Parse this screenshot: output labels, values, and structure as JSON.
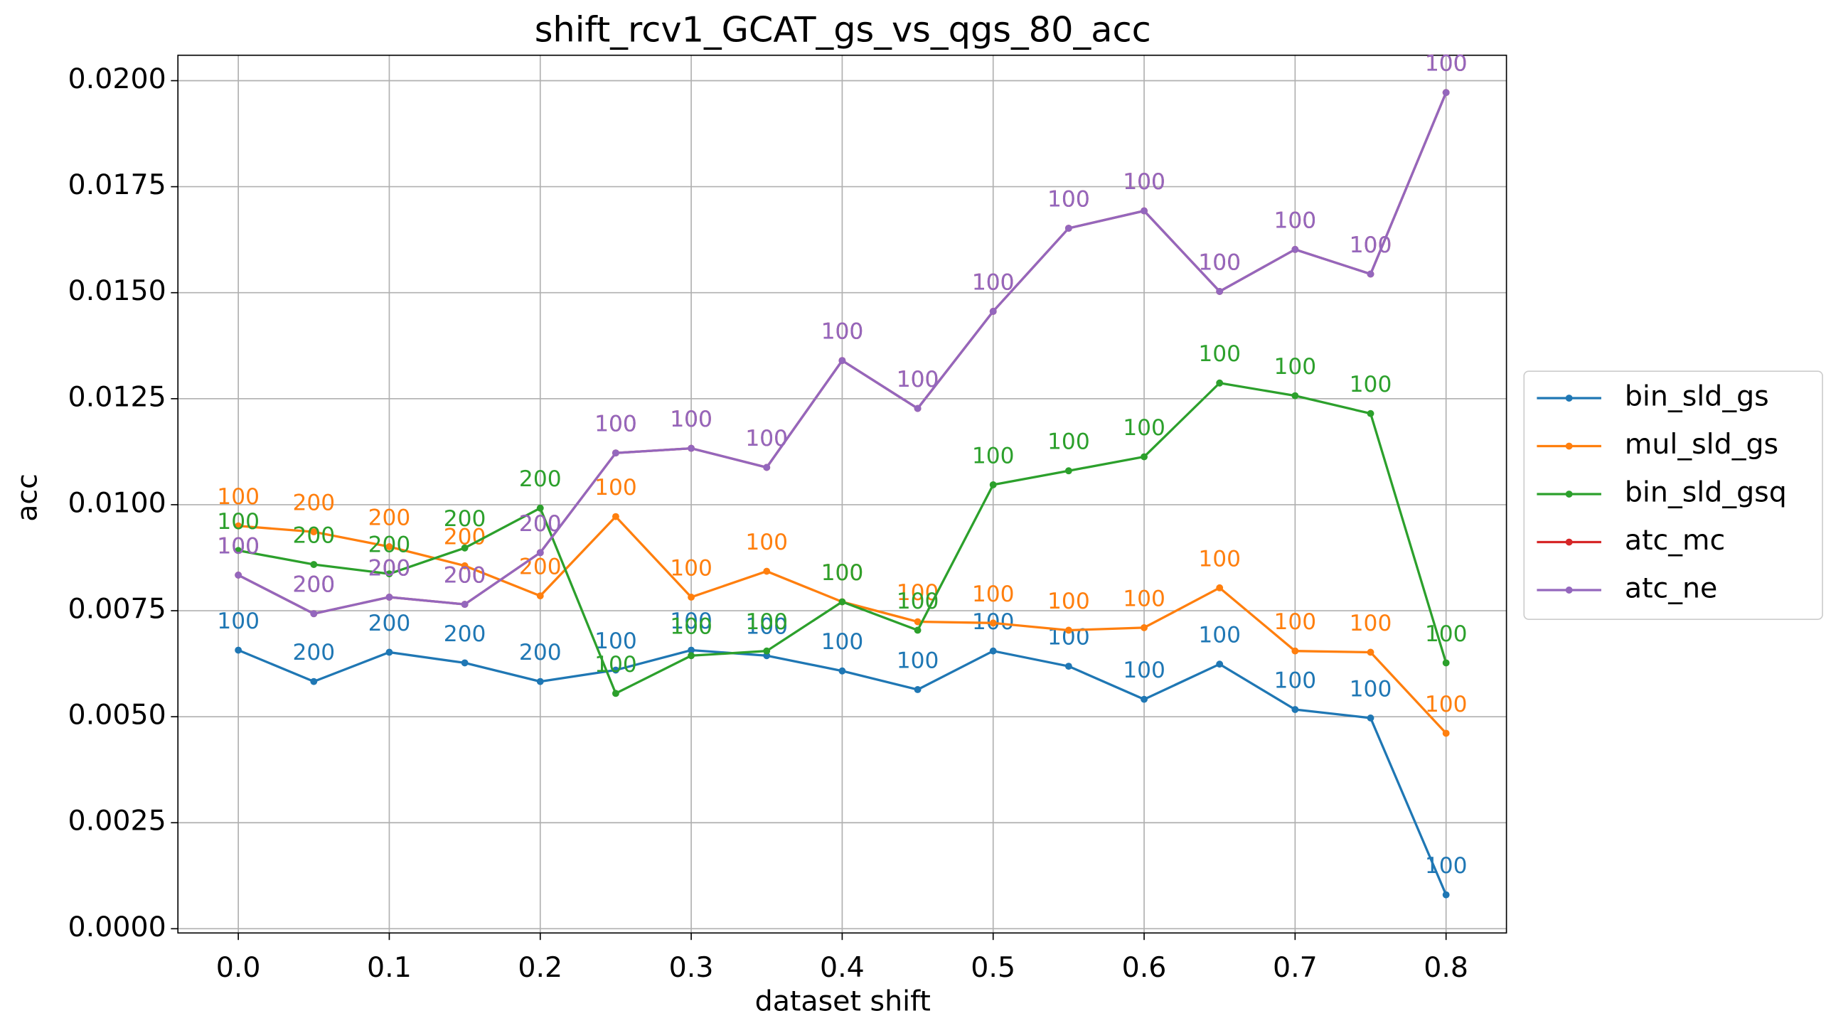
{
  "chart_data": {
    "type": "line",
    "title": "shift_rcv1_GCAT_gs_vs_qgs_80_acc",
    "xlabel": "dataset shift",
    "ylabel": "acc",
    "x": [
      0,
      0.05,
      0.1,
      0.15,
      0.2,
      0.25,
      0.3,
      0.35,
      0.4,
      0.45,
      0.5,
      0.55,
      0.6,
      0.65,
      0.7,
      0.75,
      0.8
    ],
    "xlim": [
      -0.04,
      0.84
    ],
    "ylim": [
      -0.0001,
      0.0206
    ],
    "xticks": [
      {
        "value": 0,
        "label": "0.0"
      },
      0.1,
      0.2,
      0.3,
      0.4,
      0.5,
      0.6,
      0.7,
      0.8
    ],
    "yticks": [
      {
        "value": 0,
        "label": "0.0000"
      },
      {
        "value": 0.0025,
        "label": "0.0025"
      },
      {
        "value": 0.005,
        "label": "0.0050"
      },
      {
        "value": 0.0075,
        "label": "0.0075"
      },
      {
        "value": 0.01,
        "label": "0.0100"
      },
      {
        "value": 0.0125,
        "label": "0.0125"
      },
      {
        "value": 0.015,
        "label": "0.0150"
      },
      {
        "value": 0.0175,
        "label": "0.0175"
      },
      {
        "value": 0.02,
        "label": "0.0200"
      }
    ],
    "grid": true,
    "legend": "right",
    "series": [
      {
        "name": "bin_sld_gs",
        "color": "#1f77b4",
        "values": [
          0.00657,
          0.00583,
          0.00652,
          0.00627,
          0.00583,
          0.0061,
          0.00657,
          0.00644,
          0.00608,
          0.00564,
          0.00655,
          0.00619,
          0.00541,
          0.00624,
          0.00517,
          0.00497,
          0.0008
        ],
        "value_labels": [
          "100",
          "200",
          "200",
          "200",
          "200",
          "100",
          "100",
          "100",
          "100",
          "100",
          "100",
          "100",
          "100",
          "100",
          "100",
          "100",
          "100"
        ]
      },
      {
        "name": "mul_sld_gs",
        "color": "#ff7f0e",
        "values": [
          0.0095,
          0.00936,
          0.00901,
          0.00856,
          0.00785,
          0.00972,
          0.00782,
          0.00843,
          0.00771,
          0.00724,
          0.00721,
          0.00704,
          0.0071,
          0.00804,
          0.00655,
          0.00652,
          0.00461
        ],
        "value_labels": [
          "100",
          "200",
          "200",
          "200",
          "200",
          "100",
          "100",
          "100",
          "100",
          "100",
          "100",
          "100",
          "100",
          "100",
          "100",
          "100",
          "100"
        ]
      },
      {
        "name": "bin_sld_gsq",
        "color": "#2ca02c",
        "values": [
          0.00892,
          0.00859,
          0.00837,
          0.00898,
          0.00992,
          0.00555,
          0.00644,
          0.00655,
          0.00771,
          0.00704,
          0.01047,
          0.0108,
          0.01113,
          0.01287,
          0.01257,
          0.01215,
          0.00627
        ],
        "value_labels": [
          "100",
          "200",
          "200",
          "200",
          "200",
          "100",
          "100",
          "100",
          "100",
          "100",
          "100",
          "100",
          "100",
          "100",
          "100",
          "100",
          "100"
        ]
      },
      {
        "name": "atc_mc",
        "color": "#d62728",
        "values": [
          0.00834,
          0.00743,
          0.00782,
          0.00765,
          0.00887,
          0.01122,
          0.01133,
          0.01088,
          0.0134,
          0.01227,
          0.01456,
          0.01652,
          0.01693,
          0.01503,
          0.01602,
          0.01544,
          0.01972
        ],
        "value_labels": [
          "100",
          "200",
          "200",
          "200",
          "200",
          "100",
          "100",
          "100",
          "100",
          "100",
          "100",
          "100",
          "100",
          "100",
          "100",
          "100",
          "100"
        ]
      },
      {
        "name": "atc_ne",
        "color": "#9467bd",
        "values": [
          0.00834,
          0.00743,
          0.00782,
          0.00765,
          0.00887,
          0.01122,
          0.01133,
          0.01088,
          0.0134,
          0.01227,
          0.01456,
          0.01652,
          0.01693,
          0.01503,
          0.01602,
          0.01544,
          0.01972
        ],
        "value_labels": [
          "100",
          "200",
          "200",
          "200",
          "200",
          "100",
          "100",
          "100",
          "100",
          "100",
          "100",
          "100",
          "100",
          "100",
          "100",
          "100",
          "100"
        ]
      }
    ]
  }
}
